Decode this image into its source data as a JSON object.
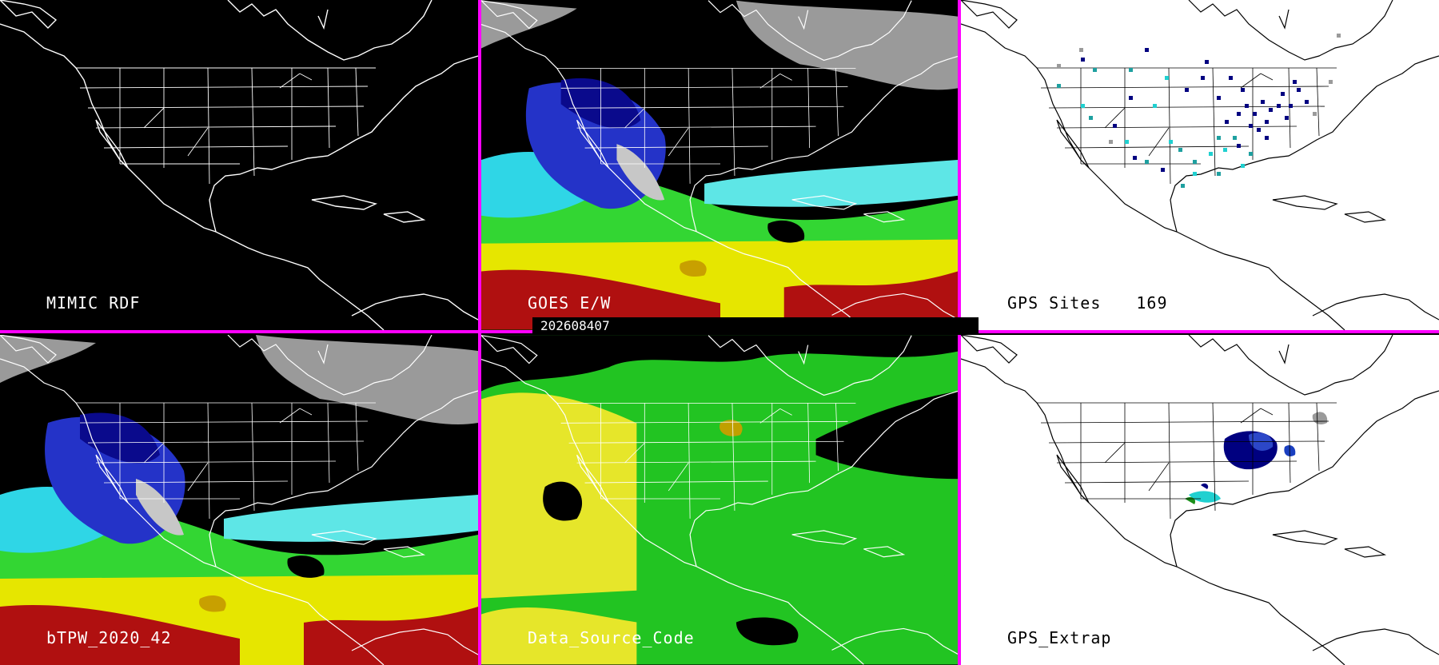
{
  "timestamp": "202608407",
  "panels": [
    {
      "id": "mimic",
      "label": "MIMIC RDF",
      "theme": "dark"
    },
    {
      "id": "goes",
      "label": "GOES E/W",
      "theme": "dark"
    },
    {
      "id": "gps",
      "label": "GPS Sites",
      "count": "169",
      "theme": "light"
    },
    {
      "id": "btpw",
      "label": "bTPW_2020_42",
      "theme": "dark"
    },
    {
      "id": "dsc",
      "label": "Data_Source_Code",
      "theme": "dark"
    },
    {
      "id": "extrap",
      "label": "GPS_Extrap",
      "theme": "light"
    }
  ],
  "colors": {
    "divider": "#ff00ff",
    "tpw_palette": [
      "#c7c7c7",
      "#9a9a9a",
      "#0a0a8c",
      "#2433c8",
      "#4b6cdc",
      "#2fd6e6",
      "#5ee6e6",
      "#1fa51f",
      "#33d633",
      "#e6e600",
      "#c8a000",
      "#b01010",
      "#ff8080"
    ],
    "dsc_palette": [
      "#e6e62a",
      "#22c422",
      "#000000"
    ],
    "gps_marker_palette": [
      "#000080",
      "#1ea0a0",
      "#20d0d0",
      "#9a9a9a"
    ]
  }
}
